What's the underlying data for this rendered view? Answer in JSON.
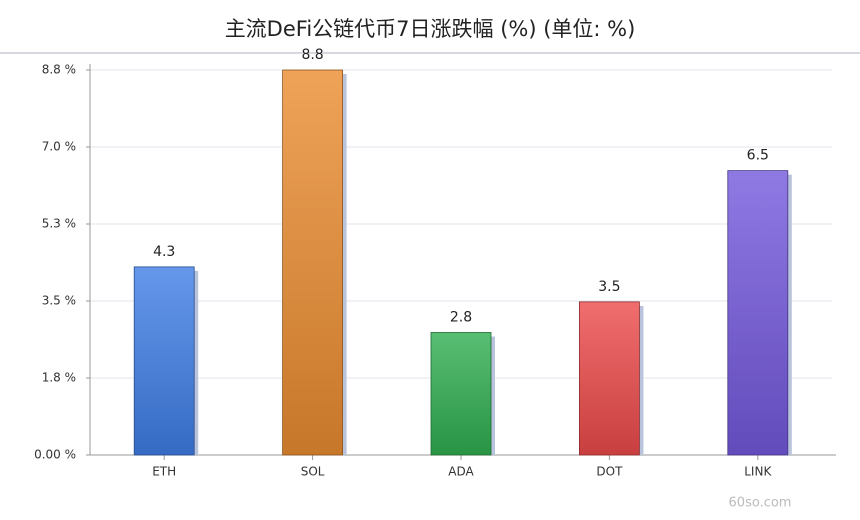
{
  "chart_data": {
    "type": "bar",
    "title": "主流DeFi公链代币7日涨跌幅 (%) (单位: %)",
    "categories": [
      "ETH",
      "SOL",
      "ADA",
      "DOT",
      "LINK"
    ],
    "values": [
      4.3,
      8.8,
      2.8,
      3.5,
      6.5
    ],
    "colors": [
      "#3f7ee6",
      "#ea8c30",
      "#2fae50",
      "#ec4a4a",
      "#7358dc"
    ],
    "ylim": [
      0,
      8.8
    ],
    "yticks": [
      {
        "value": 0,
        "label": "0.00 %"
      },
      {
        "value": 1.76,
        "label": "1.8 %"
      },
      {
        "value": 3.52,
        "label": "3.5 %"
      },
      {
        "value": 5.28,
        "label": "5.3 %"
      },
      {
        "value": 7.04,
        "label": "7.0 %"
      },
      {
        "value": 8.8,
        "label": "8.8 %"
      }
    ],
    "grid": true,
    "watermark": "60so.com"
  }
}
